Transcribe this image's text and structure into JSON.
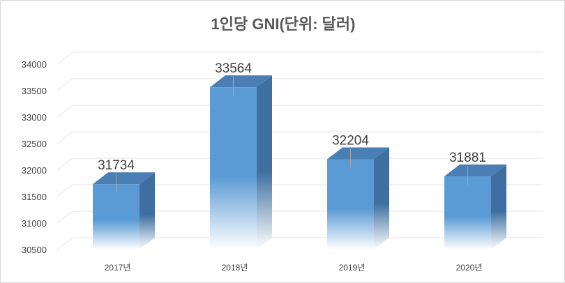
{
  "chart_data": {
    "type": "bar",
    "title": "1인당 GNI(단위: 달러)",
    "categories": [
      "2017년",
      "2018년",
      "2019년",
      "2020년"
    ],
    "values": [
      31734,
      33564,
      32204,
      31881
    ],
    "data_labels": [
      "31734",
      "33564",
      "32204",
      "31881"
    ],
    "xlabel": "",
    "ylabel": "",
    "ylim": [
      30500,
      34000
    ],
    "yticks": [
      30500,
      31000,
      31500,
      32000,
      32500,
      33000,
      33500,
      34000
    ],
    "ytick_labels": [
      "30500",
      "31000",
      "31500",
      "32000",
      "32500",
      "33000",
      "33500",
      "34000"
    ],
    "style": "3d-column",
    "grid": true,
    "legend": "none",
    "colors": {
      "front": "#5b9bd5",
      "side": "#3e6fa0",
      "top": "#4a7fb5",
      "grid": "#e4e4e4",
      "text": "#404040"
    }
  }
}
